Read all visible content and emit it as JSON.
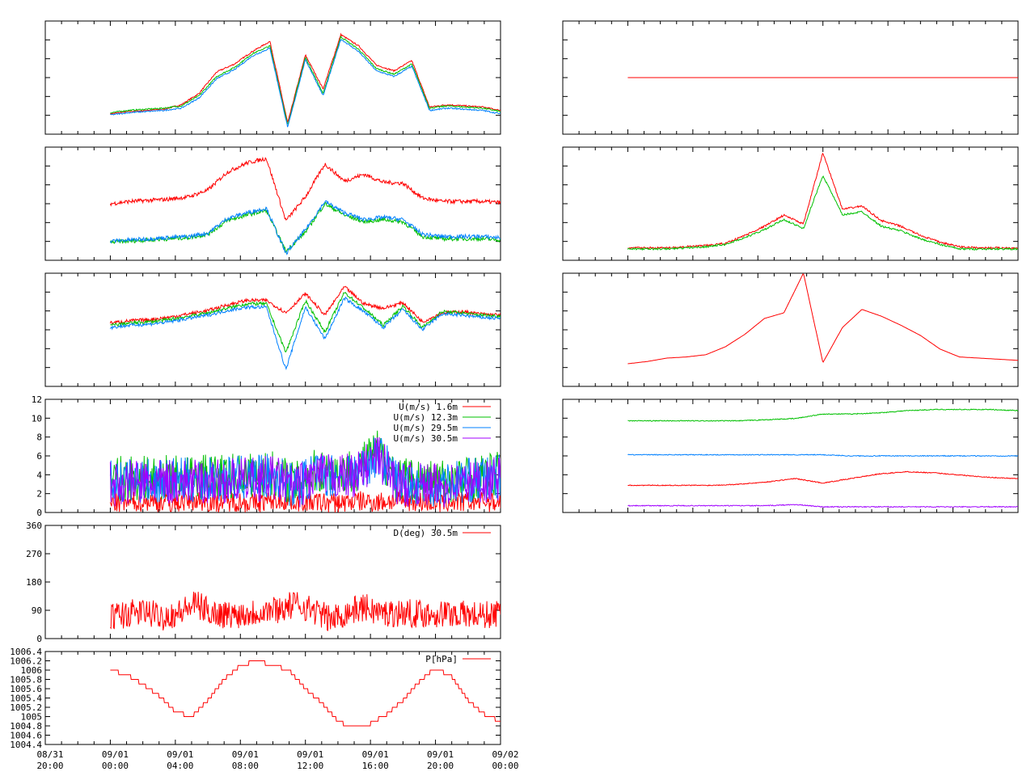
{
  "page": {
    "background": "#ffffff"
  },
  "x_axis": {
    "range": [
      "08/31 20:00",
      "09/02 00:00"
    ],
    "ticks": [
      {
        "date": "08/31",
        "time": "20:00"
      },
      {
        "date": "09/01",
        "time": "00:00"
      },
      {
        "date": "09/01",
        "time": "04:00"
      },
      {
        "date": "09/01",
        "time": "08:00"
      },
      {
        "date": "09/01",
        "time": "12:00"
      },
      {
        "date": "09/01",
        "time": "16:00"
      },
      {
        "date": "09/01",
        "time": "20:00"
      },
      {
        "date": "09/02",
        "time": "00:00"
      }
    ]
  },
  "colors": {
    "red": "#ff0000",
    "green": "#00c000",
    "blue": "#0080ff",
    "purple": "#a000ff"
  },
  "chart_data": [
    {
      "id": "left-1",
      "type": "line",
      "ylim": [
        0,
        10
      ],
      "grid": false,
      "data_start": "09/01 00:00",
      "series": [
        {
          "color": "#ff0000",
          "values": [
            1.8,
            2.0,
            2.1,
            2.2,
            2.6,
            3.6,
            5.5,
            6.2,
            7.3,
            8.2,
            1.0,
            7.0,
            4.0,
            8.8,
            7.8,
            6.1,
            5.6,
            6.5,
            2.4,
            2.6,
            2.5,
            2.4,
            2.1
          ]
        },
        {
          "color": "#00c000",
          "values": [
            1.9,
            2.1,
            2.2,
            2.3,
            2.5,
            3.4,
            5.1,
            5.9,
            7.1,
            7.8,
            0.8,
            6.8,
            3.6,
            8.6,
            7.5,
            5.8,
            5.3,
            6.2,
            2.3,
            2.5,
            2.4,
            2.3,
            2.0
          ]
        },
        {
          "color": "#0080ff",
          "values": [
            1.7,
            1.9,
            2.0,
            2.1,
            2.3,
            3.2,
            4.9,
            5.7,
            6.9,
            7.6,
            0.6,
            6.6,
            3.4,
            8.4,
            7.3,
            5.6,
            5.1,
            6.0,
            2.1,
            2.3,
            2.2,
            2.1,
            1.8
          ]
        }
      ]
    },
    {
      "id": "left-2",
      "type": "line",
      "ylim": [
        0,
        10
      ],
      "grid": false,
      "data_start": "09/01 00:00",
      "series": [
        {
          "color": "#ff0000",
          "values": [
            5.0,
            5.2,
            5.3,
            5.4,
            5.6,
            6.2,
            7.8,
            8.6,
            9.0,
            3.5,
            5.6,
            8.5,
            7.0,
            7.6,
            6.9,
            6.8,
            5.5,
            5.2,
            5.2,
            5.2,
            5.1
          ]
        },
        {
          "color": "#00c000",
          "values": [
            1.6,
            1.7,
            1.8,
            1.9,
            2.0,
            2.3,
            3.5,
            4.0,
            4.4,
            0.8,
            2.5,
            5.0,
            4.0,
            3.4,
            3.6,
            3.4,
            2.1,
            1.9,
            1.9,
            1.9,
            1.8
          ]
        },
        {
          "color": "#0080ff",
          "values": [
            1.7,
            1.8,
            1.9,
            2.0,
            2.1,
            2.4,
            3.7,
            4.2,
            4.6,
            0.6,
            2.7,
            5.2,
            4.2,
            3.6,
            3.8,
            3.6,
            2.3,
            2.1,
            2.1,
            2.1,
            2.0
          ]
        }
      ]
    },
    {
      "id": "left-3",
      "type": "line",
      "ylim": [
        0,
        10
      ],
      "grid": false,
      "data_start": "09/01 00:00",
      "series": [
        {
          "color": "#ff0000",
          "values": [
            5.6,
            5.8,
            5.9,
            6.1,
            6.4,
            6.7,
            7.2,
            7.6,
            7.6,
            6.5,
            8.2,
            6.3,
            8.8,
            7.3,
            6.9,
            7.4,
            5.7,
            6.5,
            6.6,
            6.4,
            6.3
          ]
        },
        {
          "color": "#00c000",
          "values": [
            5.4,
            5.6,
            5.7,
            5.9,
            6.2,
            6.5,
            6.9,
            7.3,
            7.3,
            3.0,
            7.6,
            4.8,
            8.3,
            6.9,
            5.4,
            7.1,
            5.2,
            6.6,
            6.5,
            6.3,
            6.2
          ]
        },
        {
          "color": "#0080ff",
          "values": [
            5.2,
            5.4,
            5.5,
            5.7,
            6.0,
            6.3,
            6.7,
            7.0,
            7.0,
            1.5,
            7.0,
            4.2,
            7.8,
            6.6,
            5.2,
            6.8,
            5.0,
            6.4,
            6.3,
            6.1,
            6.0
          ]
        }
      ]
    },
    {
      "id": "left-4",
      "type": "line",
      "ylim": [
        0,
        12
      ],
      "grid": false,
      "data_start": "09/01 00:00",
      "yticks": [
        "0",
        "2",
        "4",
        "6",
        "8",
        "10",
        "12"
      ],
      "legend": {
        "placement": "top-right"
      },
      "series": [
        {
          "name": "U(m/s)  1.6m",
          "color": "#ff0000",
          "values": [
            1.0,
            1.1,
            1.2,
            1.0,
            1.3,
            1.1,
            1.2,
            1.0,
            1.3,
            1.2,
            1.1,
            1.0,
            1.2,
            1.1,
            1.3,
            1.2,
            1.0,
            1.1,
            1.2,
            1.1
          ]
        },
        {
          "name": "U(m/s) 12.3m",
          "color": "#00c000",
          "values": [
            3.5,
            3.7,
            3.6,
            3.8,
            3.7,
            3.8,
            3.9,
            4.0,
            4.2,
            3.0,
            4.4,
            4.3,
            4.5,
            6.5,
            3.6,
            3.4,
            3.3,
            3.6,
            3.8,
            4.1
          ]
        },
        {
          "name": "U(m/s) 29.5m",
          "color": "#0080ff",
          "values": [
            3.2,
            3.4,
            3.3,
            3.5,
            3.4,
            3.5,
            3.6,
            3.7,
            3.9,
            2.8,
            4.1,
            4.0,
            4.2,
            6.2,
            3.3,
            3.1,
            3.0,
            3.3,
            3.5,
            3.8
          ]
        },
        {
          "name": "U(m/s) 30.5m",
          "color": "#a000ff",
          "values": [
            3.0,
            3.2,
            3.1,
            3.3,
            3.2,
            3.3,
            3.4,
            3.5,
            3.7,
            2.6,
            3.9,
            3.8,
            4.0,
            6.0,
            3.1,
            2.9,
            2.8,
            3.1,
            3.3,
            3.6
          ]
        }
      ]
    },
    {
      "id": "left-5",
      "type": "line",
      "ylim": [
        0,
        360
      ],
      "grid": false,
      "data_start": "09/01 00:00",
      "yticks": [
        "0",
        "90",
        "180",
        "270",
        "360"
      ],
      "legend": {
        "placement": "top-right"
      },
      "series": [
        {
          "name": "D(deg)  30.5m",
          "color": "#ff0000",
          "values": [
            70,
            78,
            85,
            70,
            80,
            110,
            82,
            75,
            80,
            88,
            95,
            110,
            90,
            60,
            85,
            100,
            80,
            82,
            80,
            78,
            80,
            76,
            74,
            80
          ]
        }
      ]
    },
    {
      "id": "left-6",
      "type": "line",
      "ylim": [
        1004.4,
        1006.4
      ],
      "grid": false,
      "data_start": "09/01 00:00",
      "yticks": [
        "1006.4",
        "1006.2",
        "1006",
        "1005.8",
        "1005.6",
        "1005.4",
        "1005.2",
        "1005",
        "1004.8",
        "1004.6",
        "1004.4"
      ],
      "legend": {
        "placement": "top-right"
      },
      "series": [
        {
          "name": "P[hPa]",
          "color": "#ff0000",
          "values": [
            1006.0,
            1005.9,
            1005.7,
            1005.45,
            1005.1,
            1005.0,
            1005.35,
            1005.8,
            1006.1,
            1006.2,
            1006.1,
            1006.0,
            1005.6,
            1005.3,
            1004.9,
            1004.75,
            1004.85,
            1005.05,
            1005.35,
            1005.75,
            1006.05,
            1005.85,
            1005.35,
            1005.05,
            1004.9
          ]
        }
      ]
    },
    {
      "id": "right-1",
      "type": "line",
      "ylim": [
        0,
        10
      ],
      "grid": false,
      "data_start": "09/01 00:00",
      "series": [
        {
          "color": "#ff0000",
          "values": [
            5.0,
            5.0
          ]
        }
      ]
    },
    {
      "id": "right-2",
      "type": "line",
      "ylim": [
        0,
        10
      ],
      "grid": false,
      "data_start": "09/01 00:00",
      "series": [
        {
          "color": "#ff0000",
          "values": [
            1.1,
            1.1,
            1.1,
            1.2,
            1.3,
            1.5,
            2.2,
            3.0,
            4.0,
            3.2,
            9.5,
            4.5,
            4.8,
            3.5,
            3.0,
            2.2,
            1.6,
            1.2,
            1.1,
            1.1,
            1.1
          ]
        },
        {
          "color": "#00c000",
          "values": [
            1.0,
            1.0,
            1.0,
            1.1,
            1.2,
            1.4,
            2.0,
            2.7,
            3.6,
            2.8,
            7.5,
            4.0,
            4.3,
            3.0,
            2.6,
            1.9,
            1.4,
            1.0,
            1.0,
            1.0,
            1.0
          ]
        }
      ]
    },
    {
      "id": "right-3",
      "type": "line",
      "ylim": [
        0,
        10
      ],
      "grid": false,
      "data_start": "09/01 00:00",
      "series": [
        {
          "color": "#ff0000",
          "values": [
            2.0,
            2.2,
            2.5,
            2.6,
            2.8,
            3.5,
            4.6,
            6.0,
            6.5,
            10.0,
            2.1,
            5.2,
            6.8,
            6.2,
            5.4,
            4.5,
            3.3,
            2.6,
            2.5,
            2.4,
            2.3
          ]
        }
      ]
    },
    {
      "id": "right-4",
      "type": "line",
      "ylim": [
        0,
        10
      ],
      "grid": false,
      "data_start": "09/01 00:00",
      "series": [
        {
          "color": "#00c000",
          "values": [
            8.1,
            8.1,
            8.1,
            8.1,
            8.1,
            8.2,
            8.3,
            8.7,
            8.7,
            8.8,
            9.0,
            9.1,
            9.1,
            9.1,
            9.0
          ]
        },
        {
          "color": "#0080ff",
          "values": [
            5.1,
            5.1,
            5.1,
            5.1,
            5.1,
            5.1,
            5.1,
            5.1,
            5.0,
            5.0,
            5.0,
            5.0,
            5.0,
            5.0,
            5.0
          ]
        },
        {
          "color": "#ff0000",
          "values": [
            2.4,
            2.4,
            2.4,
            2.4,
            2.5,
            2.7,
            3.0,
            2.6,
            3.0,
            3.4,
            3.6,
            3.5,
            3.3,
            3.1,
            3.0
          ]
        },
        {
          "color": "#a000ff",
          "values": [
            0.6,
            0.6,
            0.6,
            0.6,
            0.6,
            0.6,
            0.7,
            0.5,
            0.5,
            0.5,
            0.5,
            0.5,
            0.5,
            0.5,
            0.5
          ]
        }
      ]
    }
  ]
}
